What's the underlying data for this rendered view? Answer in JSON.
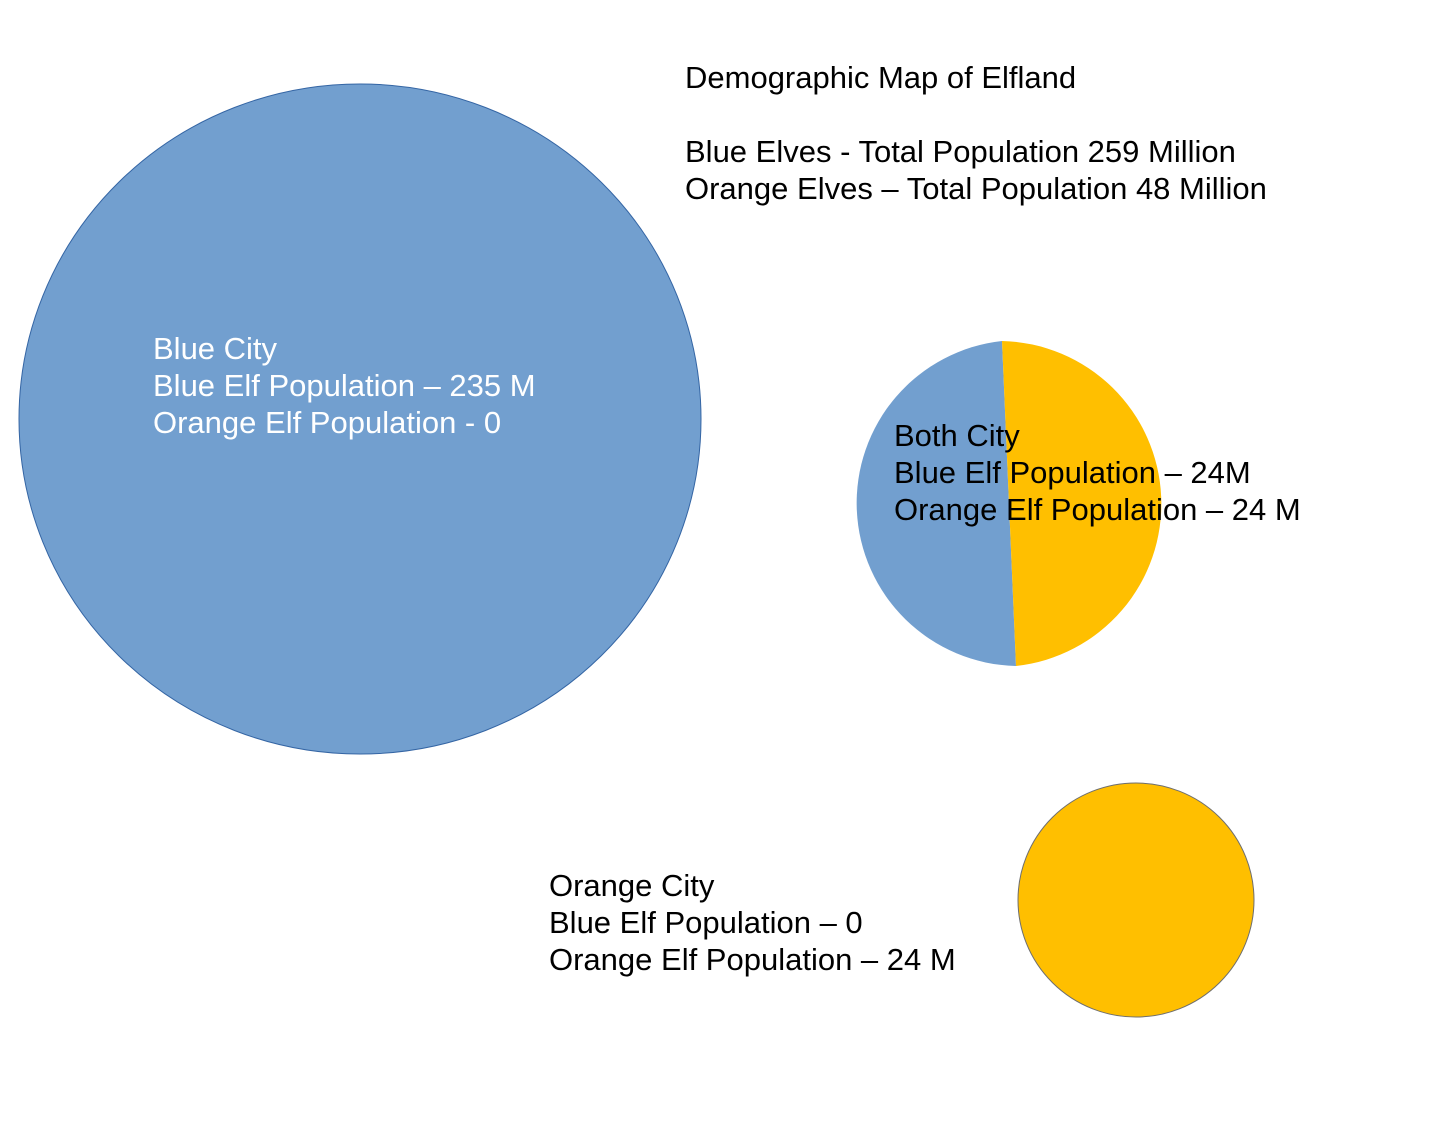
{
  "title": "Demographic Map of Elfland",
  "totals": [
    "Blue Elves - Total Population 259 Million",
    "Orange Elves – Total Population 48 Million"
  ],
  "colors": {
    "blue_elves": "#729fcf",
    "orange_elves": "#ffbf00",
    "blue_city_text": "#ffffff",
    "default_text": "#000000"
  },
  "cities": {
    "blue": {
      "name": "Blue City",
      "blue_line": "Blue Elf Population – 235 M",
      "orange_line": "Orange Elf Population - 0",
      "blue_population_m": 235,
      "orange_population_m": 0
    },
    "both": {
      "name": "Both City",
      "blue_line": "Blue Elf Population – 24M",
      "orange_line": "Orange Elf Population – 24 M",
      "blue_population_m": 24,
      "orange_population_m": 24
    },
    "orange": {
      "name": "Orange City",
      "blue_line": "Blue Elf Population – 0",
      "orange_line": "Orange Elf Population – 24 M",
      "blue_population_m": 0,
      "orange_population_m": 24
    }
  }
}
